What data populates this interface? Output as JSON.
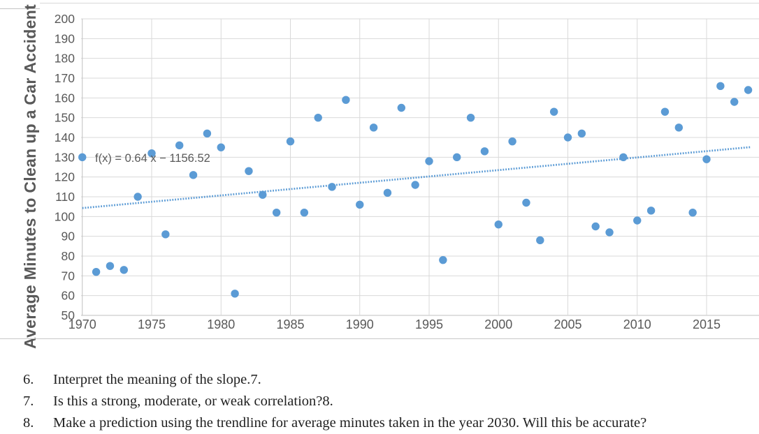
{
  "chart_data": {
    "type": "scatter",
    "title": "",
    "xlabel": "",
    "ylabel": "Average Minutes to Clean up a Car Accident",
    "x_base": 1970,
    "x_ticks": [
      1970,
      1975,
      1980,
      1985,
      1990,
      1995,
      2000,
      2005,
      2010,
      2015
    ],
    "y_ticks": [
      50,
      60,
      70,
      80,
      90,
      100,
      110,
      120,
      130,
      140,
      150,
      160,
      170,
      180,
      190,
      200
    ],
    "xlim": [
      1970,
      2018.8
    ],
    "ylim": [
      50,
      200
    ],
    "grid": true,
    "legend": "none",
    "point_color": "#5b9bd5",
    "trend_color": "#5b9bd5",
    "grid_color": "#d9d9d9",
    "axis_color": "#bfbfbf",
    "label_color": "#595959",
    "trendline": {
      "label": "f(x) = 0.64 x − 1156.52",
      "slope": 0.64,
      "intercept": -1156.52,
      "x_start": 1970,
      "x_end": 2018.15,
      "style": "dotted"
    },
    "points": [
      [
        1970,
        130
      ],
      [
        1971,
        72
      ],
      [
        1972,
        75
      ],
      [
        1973,
        73
      ],
      [
        1974,
        110
      ],
      [
        1975,
        132
      ],
      [
        1976,
        91
      ],
      [
        1977,
        136
      ],
      [
        1978,
        121
      ],
      [
        1979,
        142
      ],
      [
        1980,
        135
      ],
      [
        1981,
        61
      ],
      [
        1982,
        123
      ],
      [
        1983,
        111
      ],
      [
        1984,
        102
      ],
      [
        1985,
        138
      ],
      [
        1986,
        102
      ],
      [
        1987,
        150
      ],
      [
        1988,
        115
      ],
      [
        1989,
        159
      ],
      [
        1990,
        106
      ],
      [
        1991,
        145
      ],
      [
        1992,
        112
      ],
      [
        1993,
        155
      ],
      [
        1994,
        116
      ],
      [
        1995,
        128
      ],
      [
        1996,
        78
      ],
      [
        1997,
        130
      ],
      [
        1998,
        150
      ],
      [
        1999,
        133
      ],
      [
        2000,
        96
      ],
      [
        2001,
        138
      ],
      [
        2002,
        107
      ],
      [
        2003,
        88
      ],
      [
        2004,
        153
      ],
      [
        2005,
        140
      ],
      [
        2006,
        142
      ],
      [
        2007,
        95
      ],
      [
        2008,
        92
      ],
      [
        2009,
        130
      ],
      [
        2010,
        98
      ],
      [
        2011,
        103
      ],
      [
        2012,
        153
      ],
      [
        2013,
        145
      ],
      [
        2014,
        102
      ],
      [
        2015,
        129
      ],
      [
        2016,
        166
      ],
      [
        2017,
        158
      ],
      [
        2018,
        164
      ]
    ]
  },
  "questions": [
    {
      "number": "6.",
      "text": "Interpret the meaning of the slope.7."
    },
    {
      "number": "7.",
      "text": "Is this a strong, moderate, or weak correlation?8."
    },
    {
      "number": "8.",
      "text": "Make a prediction using the trendline for average minutes taken in the year 2030. Will this be accurate?"
    }
  ]
}
